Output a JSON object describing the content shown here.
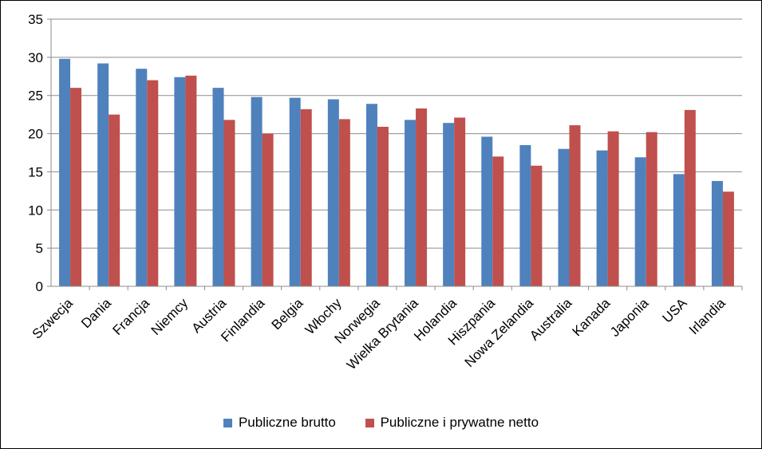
{
  "chart_data": {
    "type": "bar",
    "categories": [
      "Szwecja",
      "Dania",
      "Francja",
      "Niemcy",
      "Austria",
      "Finlandia",
      "Belgia",
      "Włochy",
      "Norwegia",
      "Wielka Brytania",
      "Holandia",
      "Hiszpania",
      "Nowa Zelandia",
      "Australia",
      "Kanada",
      "Japonia",
      "USA",
      "Irlandia"
    ],
    "series": [
      {
        "name": "Publiczne brutto",
        "color": "#4f81bd",
        "values": [
          29.8,
          29.2,
          28.5,
          27.4,
          26.0,
          24.8,
          24.7,
          24.5,
          23.9,
          21.8,
          21.4,
          19.6,
          18.5,
          18.0,
          17.8,
          16.9,
          14.7,
          13.8
        ]
      },
      {
        "name": "Publiczne i prywatne netto",
        "color": "#c0504d",
        "values": [
          26.0,
          22.5,
          27.0,
          27.6,
          21.8,
          20.0,
          23.2,
          21.9,
          20.9,
          23.3,
          22.1,
          17.0,
          15.8,
          21.1,
          20.3,
          20.2,
          23.1,
          12.4
        ]
      }
    ],
    "y_ticks": [
      "0",
      "5",
      "10",
      "15",
      "20",
      "25",
      "30",
      "35"
    ],
    "ylim": [
      0,
      35
    ],
    "grid": true,
    "legend_position": "bottom"
  }
}
